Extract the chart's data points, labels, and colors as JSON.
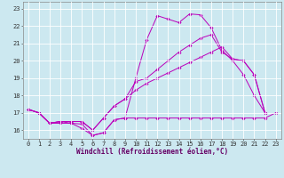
{
  "x": [
    0,
    1,
    2,
    3,
    4,
    5,
    6,
    7,
    8,
    9,
    10,
    11,
    12,
    13,
    14,
    15,
    16,
    17,
    18,
    19,
    20,
    21,
    22,
    23
  ],
  "line1": [
    17.2,
    17.0,
    16.4,
    16.5,
    16.4,
    16.1,
    15.7,
    15.85,
    16.6,
    16.7,
    19.0,
    21.2,
    22.6,
    22.4,
    22.2,
    22.7,
    22.65,
    21.9,
    20.6,
    20.0,
    19.2,
    18.0,
    17.0,
    null
  ],
  "line2": [
    17.2,
    17.0,
    16.4,
    16.5,
    16.5,
    16.5,
    16.0,
    16.7,
    17.4,
    17.8,
    18.8,
    19.0,
    19.5,
    20.0,
    20.5,
    20.9,
    21.3,
    21.5,
    20.5,
    20.1,
    20.0,
    19.2,
    17.0,
    null
  ],
  "line3": [
    17.2,
    17.0,
    16.4,
    16.5,
    16.5,
    16.5,
    16.0,
    16.7,
    17.4,
    17.8,
    18.3,
    18.7,
    19.0,
    19.3,
    19.6,
    19.9,
    20.2,
    20.5,
    20.8,
    20.1,
    20.0,
    19.2,
    17.0,
    null
  ],
  "line4": [
    17.2,
    17.0,
    16.4,
    16.4,
    16.4,
    16.35,
    15.7,
    15.85,
    16.6,
    16.7,
    16.7,
    16.7,
    16.7,
    16.7,
    16.7,
    16.7,
    16.7,
    16.7,
    16.7,
    16.7,
    16.7,
    16.7,
    16.7,
    17.0
  ],
  "bg_color": "#cce8f0",
  "grid_color": "#ffffff",
  "line_color": "#bb00bb",
  "marker": "D",
  "markersize": 1.8,
  "xlabel": "Windchill (Refroidissement éolien,°C)",
  "ylim": [
    15.5,
    23.4
  ],
  "xlim": [
    -0.5,
    23.5
  ],
  "yticks": [
    16,
    17,
    18,
    19,
    20,
    21,
    22,
    23
  ],
  "xticks": [
    0,
    1,
    2,
    3,
    4,
    5,
    6,
    7,
    8,
    9,
    10,
    11,
    12,
    13,
    14,
    15,
    16,
    17,
    18,
    19,
    20,
    21,
    22,
    23
  ],
  "tick_fontsize": 5.0,
  "xlabel_fontsize": 5.5,
  "linewidth": 0.7
}
